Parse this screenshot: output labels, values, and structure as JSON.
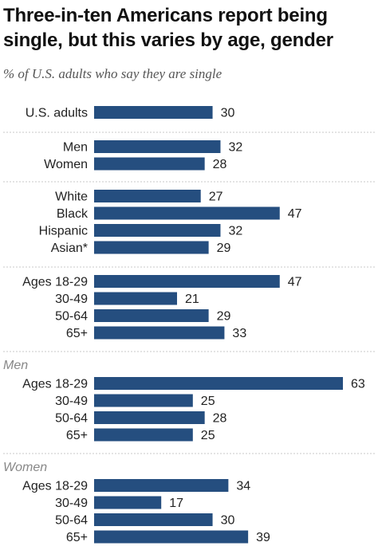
{
  "title": "Three-in-ten Americans report being single, but this varies by age, gender",
  "subtitle": "% of U.S. adults who say they are single",
  "chart_data": {
    "type": "bar",
    "orientation": "horizontal",
    "xlim": [
      0,
      63
    ],
    "bar_color": "#254E7F",
    "groups": [
      {
        "title": "",
        "categories": [
          "U.S. adults"
        ],
        "values": [
          30
        ]
      },
      {
        "title": "",
        "categories": [
          "Men",
          "Women"
        ],
        "values": [
          32,
          28
        ]
      },
      {
        "title": "",
        "categories": [
          "White",
          "Black",
          "Hispanic",
          "Asian*"
        ],
        "values": [
          27,
          47,
          32,
          29
        ]
      },
      {
        "title": "",
        "categories": [
          "Ages 18-29",
          "30-49",
          "50-64",
          "65+"
        ],
        "values": [
          47,
          21,
          29,
          33
        ]
      },
      {
        "title": "Men",
        "categories": [
          "Ages 18-29",
          "30-49",
          "50-64",
          "65+"
        ],
        "values": [
          63,
          25,
          28,
          25
        ]
      },
      {
        "title": "Women",
        "categories": [
          "Ages 18-29",
          "30-49",
          "50-64",
          "65+"
        ],
        "values": [
          34,
          17,
          30,
          39
        ]
      }
    ]
  }
}
